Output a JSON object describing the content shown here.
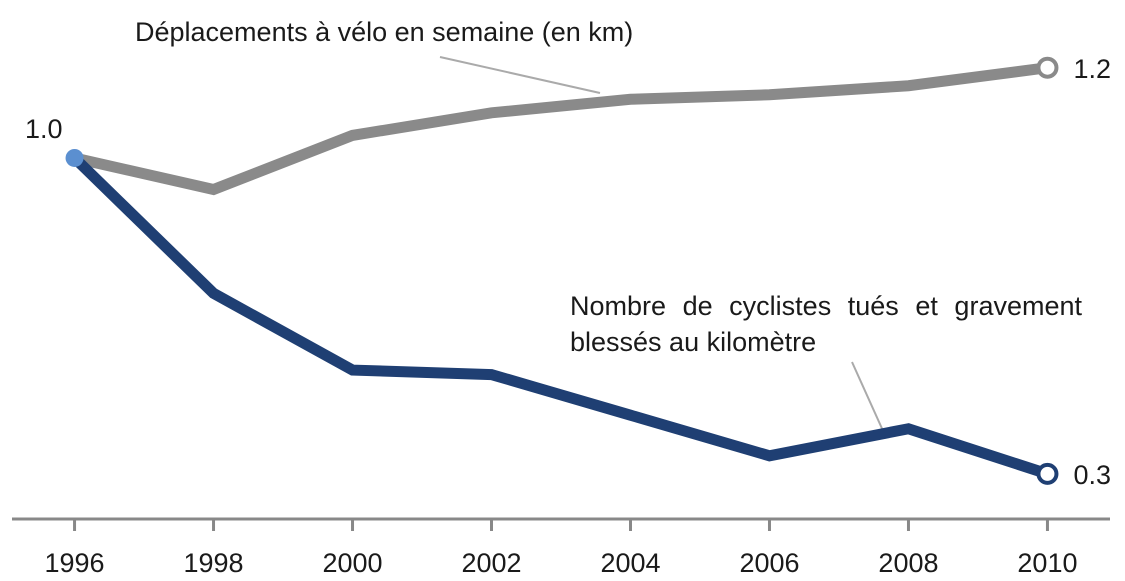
{
  "chart_data": {
    "type": "line",
    "x": [
      1996,
      1998,
      2000,
      2002,
      2004,
      2006,
      2008,
      2010
    ],
    "xlim": [
      1995.1,
      2010.9
    ],
    "xticks": [
      1996,
      1998,
      2000,
      2002,
      2004,
      2006,
      2008,
      2010
    ],
    "ylim": [
      0.2,
      1.35
    ],
    "series": [
      {
        "name": "Déplacements à vélo en semaine (en km)",
        "color": "#8a8a8a",
        "values": [
          1.0,
          0.93,
          1.05,
          1.1,
          1.13,
          1.14,
          1.16,
          1.2
        ],
        "value_labels": [
          null,
          null,
          null,
          null,
          null,
          null,
          null,
          "1.2"
        ]
      },
      {
        "name": "Nombre de cyclistes tués et gravement blessés au kilomètre",
        "color": "#1f3f73",
        "values": [
          1.0,
          0.7,
          0.53,
          0.52,
          0.43,
          0.34,
          0.4,
          0.3
        ],
        "value_labels": [
          "1.0",
          null,
          null,
          null,
          null,
          null,
          null,
          "0.3"
        ]
      }
    ]
  }
}
